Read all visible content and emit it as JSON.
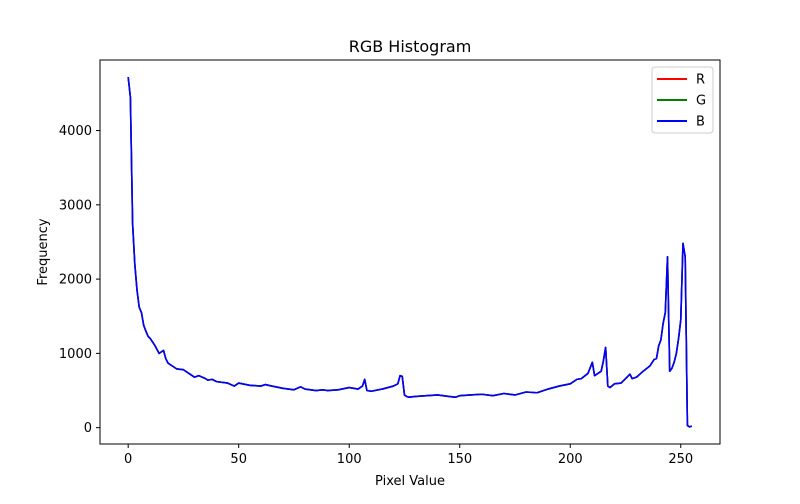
{
  "chart_data": {
    "type": "line",
    "title": "RGB Histogram",
    "xlabel": "Pixel Value",
    "ylabel": "Frequency",
    "xlim": [
      -12.75,
      267.75
    ],
    "ylim": [
      -220,
      4950
    ],
    "xticks": [
      0,
      50,
      100,
      150,
      200,
      250
    ],
    "yticks": [
      0,
      1000,
      2000,
      3000,
      4000
    ],
    "grid": false,
    "legend_position": "top-right",
    "series": [
      {
        "name": "R",
        "color": "#ff0000",
        "x": [
          0,
          1,
          2,
          3,
          4,
          5,
          6,
          7,
          8,
          9,
          10,
          12,
          14,
          16,
          17,
          18,
          20,
          22,
          25,
          28,
          30,
          32,
          35,
          36,
          38,
          40,
          45,
          48,
          50,
          55,
          60,
          62,
          65,
          70,
          75,
          78,
          80,
          85,
          88,
          90,
          95,
          100,
          104,
          106,
          107,
          108,
          110,
          115,
          120,
          122,
          123,
          124,
          125,
          126,
          127,
          130,
          135,
          140,
          145,
          148,
          150,
          155,
          160,
          165,
          170,
          175,
          180,
          185,
          190,
          195,
          200,
          203,
          205,
          208,
          210,
          211,
          212,
          214,
          215,
          216,
          217,
          218,
          220,
          223,
          225,
          227,
          228,
          230,
          233,
          236,
          238,
          239,
          240,
          241,
          242,
          243,
          244,
          245,
          246,
          247,
          248,
          249,
          250,
          251,
          252,
          253,
          254,
          255
        ],
        "values": [
          4720,
          4450,
          2750,
          2200,
          1850,
          1620,
          1550,
          1380,
          1300,
          1230,
          1200,
          1110,
          1000,
          1040,
          930,
          870,
          830,
          790,
          780,
          720,
          680,
          700,
          660,
          640,
          650,
          620,
          600,
          560,
          600,
          570,
          560,
          580,
          560,
          530,
          510,
          550,
          520,
          500,
          510,
          500,
          510,
          540,
          520,
          560,
          650,
          500,
          490,
          520,
          560,
          590,
          700,
          690,
          440,
          420,
          410,
          420,
          430,
          440,
          420,
          410,
          430,
          440,
          450,
          430,
          460,
          440,
          480,
          470,
          520,
          560,
          590,
          650,
          660,
          730,
          880,
          700,
          720,
          760,
          900,
          1080,
          560,
          540,
          590,
          600,
          660,
          720,
          660,
          680,
          760,
          830,
          920,
          930,
          1100,
          1180,
          1400,
          1550,
          2300,
          760,
          800,
          880,
          1000,
          1200,
          1450,
          2480,
          2300,
          30,
          10,
          20
        ]
      },
      {
        "name": "G",
        "color": "#008000",
        "x": [
          0,
          1,
          2,
          3,
          4,
          5,
          6,
          7,
          8,
          9,
          10,
          12,
          14,
          16,
          17,
          18,
          20,
          22,
          25,
          28,
          30,
          32,
          35,
          36,
          38,
          40,
          45,
          48,
          50,
          55,
          60,
          62,
          65,
          70,
          75,
          78,
          80,
          85,
          88,
          90,
          95,
          100,
          104,
          106,
          107,
          108,
          110,
          115,
          120,
          122,
          123,
          124,
          125,
          126,
          127,
          130,
          135,
          140,
          145,
          148,
          150,
          155,
          160,
          165,
          170,
          175,
          180,
          185,
          190,
          195,
          200,
          203,
          205,
          208,
          210,
          211,
          212,
          214,
          215,
          216,
          217,
          218,
          220,
          223,
          225,
          227,
          228,
          230,
          233,
          236,
          238,
          239,
          240,
          241,
          242,
          243,
          244,
          245,
          246,
          247,
          248,
          249,
          250,
          251,
          252,
          253,
          254,
          255
        ],
        "values": [
          4720,
          4450,
          2750,
          2200,
          1850,
          1620,
          1550,
          1380,
          1300,
          1230,
          1200,
          1110,
          1000,
          1040,
          930,
          870,
          830,
          790,
          780,
          720,
          680,
          700,
          660,
          640,
          650,
          620,
          600,
          560,
          600,
          570,
          560,
          580,
          560,
          530,
          510,
          550,
          520,
          500,
          510,
          500,
          510,
          540,
          520,
          560,
          650,
          500,
          490,
          520,
          560,
          590,
          700,
          690,
          440,
          420,
          410,
          420,
          430,
          440,
          420,
          410,
          430,
          440,
          450,
          430,
          460,
          440,
          480,
          470,
          520,
          560,
          590,
          650,
          660,
          730,
          880,
          700,
          720,
          760,
          900,
          1080,
          560,
          540,
          590,
          600,
          660,
          720,
          660,
          680,
          760,
          830,
          920,
          930,
          1100,
          1180,
          1400,
          1550,
          2300,
          760,
          800,
          880,
          1000,
          1200,
          1450,
          2480,
          2300,
          30,
          10,
          20
        ]
      },
      {
        "name": "B",
        "color": "#0000ff",
        "x": [
          0,
          1,
          2,
          3,
          4,
          5,
          6,
          7,
          8,
          9,
          10,
          12,
          14,
          16,
          17,
          18,
          20,
          22,
          25,
          28,
          30,
          32,
          35,
          36,
          38,
          40,
          45,
          48,
          50,
          55,
          60,
          62,
          65,
          70,
          75,
          78,
          80,
          85,
          88,
          90,
          95,
          100,
          104,
          106,
          107,
          108,
          110,
          115,
          120,
          122,
          123,
          124,
          125,
          126,
          127,
          130,
          135,
          140,
          145,
          148,
          150,
          155,
          160,
          165,
          170,
          175,
          180,
          185,
          190,
          195,
          200,
          203,
          205,
          208,
          210,
          211,
          212,
          214,
          215,
          216,
          217,
          218,
          220,
          223,
          225,
          227,
          228,
          230,
          233,
          236,
          238,
          239,
          240,
          241,
          242,
          243,
          244,
          245,
          246,
          247,
          248,
          249,
          250,
          251,
          252,
          253,
          254,
          255
        ],
        "values": [
          4720,
          4450,
          2750,
          2200,
          1850,
          1620,
          1550,
          1380,
          1300,
          1230,
          1200,
          1110,
          1000,
          1040,
          930,
          870,
          830,
          790,
          780,
          720,
          680,
          700,
          660,
          640,
          650,
          620,
          600,
          560,
          600,
          570,
          560,
          580,
          560,
          530,
          510,
          550,
          520,
          500,
          510,
          500,
          510,
          540,
          520,
          560,
          650,
          500,
          490,
          520,
          560,
          590,
          700,
          690,
          440,
          420,
          410,
          420,
          430,
          440,
          420,
          410,
          430,
          440,
          450,
          430,
          460,
          440,
          480,
          470,
          520,
          560,
          590,
          650,
          660,
          730,
          880,
          700,
          720,
          760,
          900,
          1080,
          560,
          540,
          590,
          600,
          660,
          720,
          660,
          680,
          760,
          830,
          920,
          930,
          1100,
          1180,
          1400,
          1550,
          2300,
          760,
          800,
          880,
          1000,
          1200,
          1450,
          2480,
          2300,
          30,
          10,
          20
        ]
      }
    ]
  }
}
